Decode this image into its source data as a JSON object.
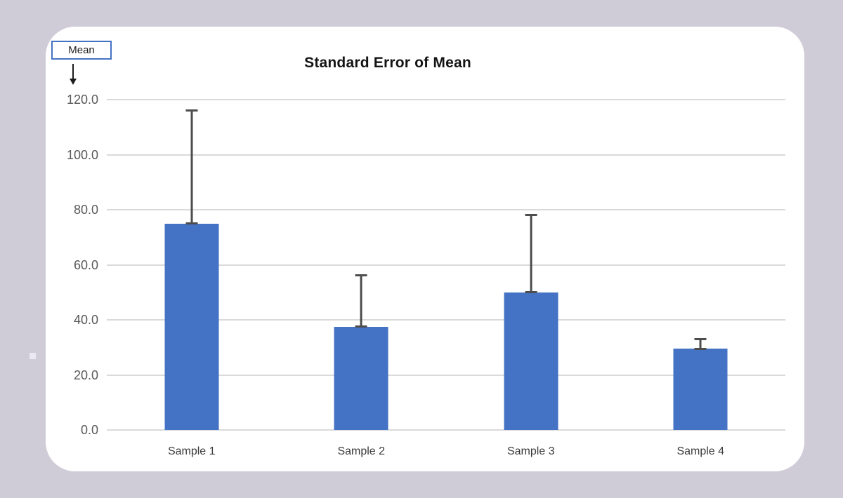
{
  "page": {
    "background_color": "#cfccd8",
    "card_color": "#ffffff"
  },
  "annotation": {
    "label": "Mean",
    "box_border_color": "#4472c4",
    "arrow_direction": "down"
  },
  "chart_data": {
    "type": "bar",
    "title": "Standard Error of Mean",
    "categories": [
      "Sample 1",
      "Sample 2",
      "Sample 3",
      "Sample 4"
    ],
    "series": [
      {
        "name": "Mean",
        "values": [
          75.0,
          37.5,
          50.0,
          29.5
        ]
      }
    ],
    "error_bars": {
      "direction": "plus",
      "values": [
        41.5,
        19.0,
        28.5,
        4.0
      ]
    },
    "ylim": [
      0,
      120
    ],
    "y_tick_labels": [
      "120.0",
      "100.0",
      "80.0",
      "60.0",
      "40.0",
      "20.0",
      "0.0"
    ],
    "xlabel": "",
    "ylabel": "",
    "grid": true,
    "legend_position": "none",
    "bar_color": "#4472c4",
    "error_bar_color": "#4d4d4d",
    "gridline_color": "#dadada",
    "tick_label_color": "#595959",
    "category_label_color": "#3a3a3a"
  }
}
